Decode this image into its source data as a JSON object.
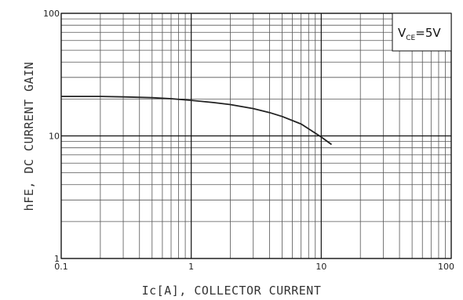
{
  "chart_data": {
    "type": "line",
    "xlabel": "Ic[A], COLLECTOR CURRENT",
    "ylabel": "hFE, DC CURRENT GAIN",
    "xscale": "log",
    "yscale": "log",
    "xlim": [
      0.1,
      100
    ],
    "ylim": [
      1,
      100
    ],
    "x_ticks": [
      "0.1",
      "1",
      "10",
      "100"
    ],
    "y_ticks": [
      "1",
      "10",
      "100"
    ],
    "grid": true,
    "legend_box": {
      "position": "top-right",
      "main": "V",
      "sub": "CE",
      "suffix": "=5V"
    },
    "series": [
      {
        "color": "#222222",
        "x": [
          0.1,
          0.2,
          0.3,
          0.5,
          0.7,
          1.0,
          1.5,
          2.0,
          3.0,
          4.0,
          5.0,
          7.0,
          10.0,
          12.0
        ],
        "y": [
          21.0,
          21.0,
          20.8,
          20.5,
          20.1,
          19.5,
          18.7,
          18.0,
          16.7,
          15.5,
          14.4,
          12.5,
          9.8,
          8.5
        ]
      }
    ]
  }
}
